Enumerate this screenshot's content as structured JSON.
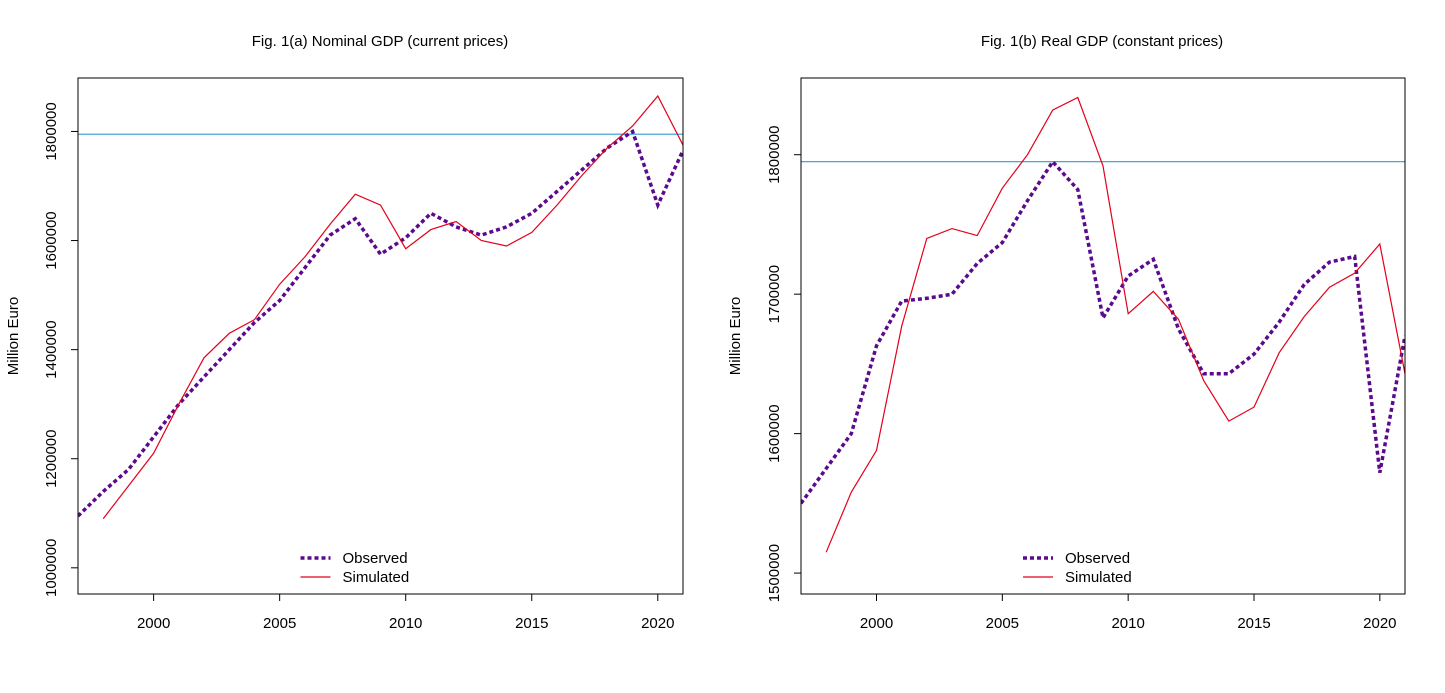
{
  "colors": {
    "observed": "#5b0a8e",
    "simulated": "#e3001b",
    "reference": "#2e9bd6",
    "axis": "#000000"
  },
  "chart_data": [
    {
      "type": "line",
      "title": "Fig. 1(a) Nominal GDP (current prices)",
      "xlabel": "",
      "ylabel": "Million Euro",
      "xlim": [
        1997,
        2021
      ],
      "ylim": [
        952000,
        1898000
      ],
      "xticks": [
        2000,
        2005,
        2010,
        2015,
        2020
      ],
      "yticks": [
        1000000,
        1200000,
        1400000,
        1600000,
        1800000
      ],
      "xtick_labels": [
        "2000",
        "2005",
        "2010",
        "2015",
        "2020"
      ],
      "ytick_labels": [
        "1000000",
        "1200000",
        "1400000",
        "1600000",
        "1800000"
      ],
      "hline": 1795000,
      "legend_position": "bottom",
      "series": [
        {
          "name": "Observed",
          "style": "dotted",
          "x": [
            1997,
            1998,
            1999,
            2000,
            2001,
            2002,
            2003,
            2004,
            2005,
            2006,
            2007,
            2008,
            2009,
            2010,
            2011,
            2012,
            2013,
            2014,
            2015,
            2016,
            2017,
            2018,
            2019,
            2020,
            2021
          ],
          "y": [
            1095000,
            1140000,
            1180000,
            1240000,
            1300000,
            1350000,
            1400000,
            1450000,
            1490000,
            1550000,
            1610000,
            1640000,
            1575000,
            1605000,
            1650000,
            1625000,
            1610000,
            1625000,
            1650000,
            1690000,
            1730000,
            1770000,
            1800000,
            1665000,
            1765000
          ]
        },
        {
          "name": "Simulated",
          "style": "solid",
          "x": [
            1998,
            1999,
            2000,
            2001,
            2002,
            2003,
            2004,
            2005,
            2006,
            2007,
            2008,
            2009,
            2010,
            2011,
            2012,
            2013,
            2014,
            2015,
            2016,
            2017,
            2018,
            2019,
            2020,
            2021
          ],
          "y": [
            1090000,
            1150000,
            1210000,
            1300000,
            1385000,
            1430000,
            1455000,
            1520000,
            1570000,
            1630000,
            1685000,
            1665000,
            1585000,
            1620000,
            1635000,
            1600000,
            1590000,
            1615000,
            1665000,
            1720000,
            1770000,
            1810000,
            1865000,
            1775000
          ]
        }
      ]
    },
    {
      "type": "line",
      "title": "Fig. 1(b) Real GDP (constant prices)",
      "xlabel": "",
      "ylabel": "Million Euro",
      "xlim": [
        1997,
        2021
      ],
      "ylim": [
        1485000,
        1855000
      ],
      "xticks": [
        2000,
        2005,
        2010,
        2015,
        2020
      ],
      "yticks": [
        1500000,
        1600000,
        1700000,
        1800000
      ],
      "xtick_labels": [
        "2000",
        "2005",
        "2010",
        "2015",
        "2020"
      ],
      "ytick_labels": [
        "1500000",
        "1600000",
        "1700000",
        "1800000"
      ],
      "hline": 1795000,
      "legend_position": "bottom",
      "series": [
        {
          "name": "Observed",
          "style": "dotted",
          "x": [
            1997,
            1998,
            1999,
            2000,
            2001,
            2002,
            2003,
            2004,
            2005,
            2006,
            2007,
            2008,
            2009,
            2010,
            2011,
            2012,
            2013,
            2014,
            2015,
            2016,
            2017,
            2018,
            2019,
            2020,
            2021
          ],
          "y": [
            1550000,
            1575000,
            1600000,
            1663000,
            1695000,
            1697000,
            1700000,
            1722000,
            1737000,
            1767000,
            1795000,
            1775000,
            1683000,
            1713000,
            1725000,
            1675000,
            1643000,
            1643000,
            1657000,
            1680000,
            1707000,
            1723000,
            1727000,
            1572000,
            1670000
          ]
        },
        {
          "name": "Simulated",
          "style": "solid",
          "x": [
            1998,
            1999,
            2000,
            2001,
            2002,
            2003,
            2004,
            2005,
            2006,
            2007,
            2008,
            2009,
            2010,
            2011,
            2012,
            2013,
            2014,
            2015,
            2016,
            2017,
            2018,
            2019,
            2020,
            2021
          ],
          "y": [
            1515000,
            1558000,
            1588000,
            1677000,
            1740000,
            1747000,
            1742000,
            1776000,
            1800000,
            1832000,
            1841000,
            1792000,
            1686000,
            1702000,
            1682000,
            1638000,
            1609000,
            1619000,
            1658000,
            1684000,
            1705000,
            1715000,
            1736000,
            1643000
          ]
        }
      ]
    }
  ]
}
